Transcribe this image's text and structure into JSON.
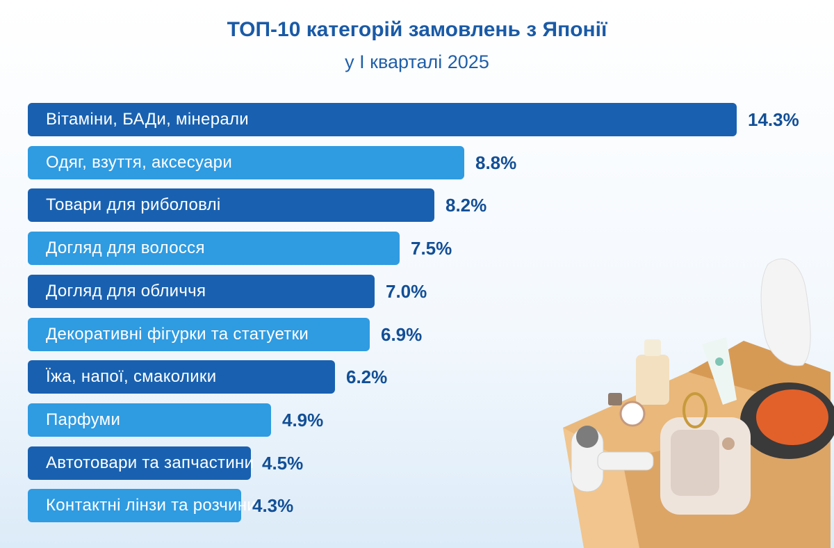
{
  "chart_data": {
    "type": "bar",
    "orientation": "horizontal",
    "title": "ТОП-10 категорій замовлень з Японії",
    "subtitle": "у І кварталі 2025",
    "categories": [
      "Вітаміни, БАДи, мінерали",
      "Одяг, взуття, аксесуари",
      "Товари для риболовлі",
      "Догляд для волосся",
      "Догляд для обличчя",
      "Декоративні фігурки та статуетки",
      "Їжа, напої, смаколики",
      "Парфуми",
      "Автотовари та запчастини",
      "Контактні лінзи та розчини"
    ],
    "values": [
      14.3,
      8.8,
      8.2,
      7.5,
      7.0,
      6.9,
      6.2,
      4.9,
      4.5,
      4.3
    ],
    "value_labels": [
      "14.3%",
      "8.8%",
      "8.2%",
      "7.5%",
      "7.0%",
      "6.9%",
      "6.2%",
      "4.9%",
      "4.5%",
      "4.3%"
    ],
    "unit": "%",
    "xlim": [
      0,
      14.3
    ],
    "colors": {
      "dark_bar": "#1961b0",
      "light_bar": "#2f9be1",
      "value_text": "#124f96",
      "title_text": "#1a5aa6"
    }
  }
}
